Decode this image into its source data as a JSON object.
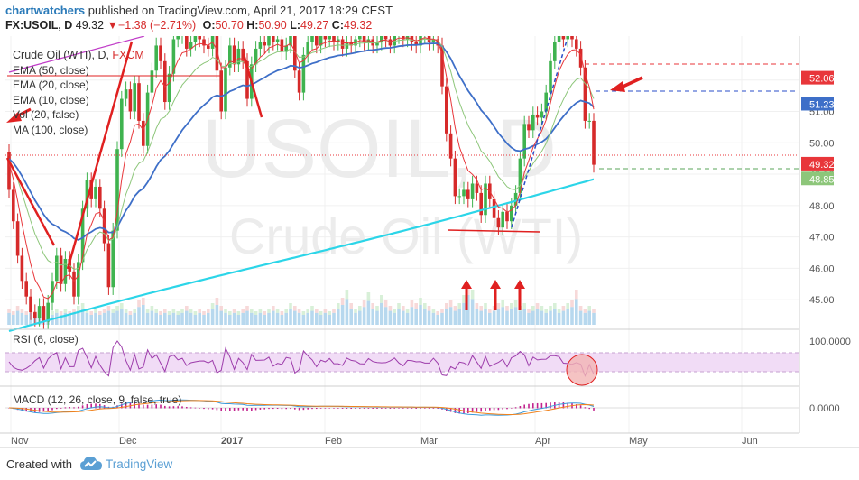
{
  "header": {
    "author": "chartwatchers",
    "published_text": "published on TradingView.com, April 21, 2017 18:29 CEST",
    "symbol": "FX:USOIL, D",
    "last": "49.32",
    "change": "−1.38 (−2.71%)",
    "open_label": "O:",
    "open": "50.70",
    "high_label": "H:",
    "high": "50.90",
    "low_label": "L:",
    "low": "49.27",
    "close_label": "C:",
    "close": "49.32"
  },
  "legend": {
    "title_main": "Crude Oil (WTI), D, ",
    "title_exchange": "FXCM",
    "ema50": "EMA (50, close)",
    "ema20": "EMA (20, close)",
    "ema10": "EMA (10, close)",
    "vol": "Vol (20, false)",
    "ma100": "MA (100, close)"
  },
  "watermark": {
    "symbol": "USOIL, D",
    "name": "Crude Oil (WTI)"
  },
  "rsi": {
    "title": "RSI (6, close)",
    "axis_label": "100.0000"
  },
  "macd": {
    "title": "MACD (12, 26, close, 9, false, true)",
    "axis_label": "0.0000"
  },
  "footer": {
    "created": "Created with",
    "brand": "TradingView"
  },
  "colors": {
    "up": "#3fb34f",
    "down": "#d62a2a",
    "ema50": "#3e6fc8",
    "ema20": "#8dc67a",
    "ema10": "#e8363a",
    "ma100": "#2cd5e8",
    "volume": "#9fcbe8",
    "rsi": "#9d3cab",
    "rsi_band": "#f1dcf6",
    "macd_fast": "#3b9ad9",
    "macd_slow": "#f0821c",
    "hist": "#c2238e"
  },
  "chart_data": {
    "type": "candlestick",
    "x_tick_labels": [
      "Nov",
      "Dec",
      "2017",
      "Feb",
      "Mar",
      "Apr",
      "May",
      "Jun"
    ],
    "y_tick_labels": [
      45.0,
      46.0,
      47.0,
      48.0,
      49.0,
      50.0,
      51.0,
      52.0
    ],
    "ylim": [
      44.2,
      53.4
    ],
    "price_labels": [
      {
        "value": 52.06,
        "text": "52.06",
        "color": "#e8363a"
      },
      {
        "value": 51.23,
        "text": "51.23",
        "color": "#3e6fc8"
      },
      {
        "value": 49.32,
        "text": "49.32",
        "color": "#e8363a"
      },
      {
        "value": 48.85,
        "text": "48.85",
        "color": "#8dc67a"
      }
    ],
    "candles": [
      [
        49.7,
        48.5
      ],
      [
        48.5,
        47.5
      ],
      [
        47.5,
        46.4
      ],
      [
        46.4,
        45.6
      ],
      [
        45.6,
        45.1
      ],
      [
        45.1,
        44.6
      ],
      [
        44.6,
        44.4
      ],
      [
        44.4,
        44.8
      ],
      [
        44.8,
        44.3
      ],
      [
        44.3,
        44.9
      ],
      [
        44.9,
        45.6
      ],
      [
        45.6,
        46.4
      ],
      [
        46.4,
        45.5
      ],
      [
        45.5,
        46.3
      ],
      [
        46.3,
        45.9
      ],
      [
        45.9,
        45.1
      ],
      [
        45.1,
        46.2
      ],
      [
        46.2,
        47.9
      ],
      [
        47.9,
        48.8
      ],
      [
        48.8,
        48.2
      ],
      [
        48.2,
        48.6
      ],
      [
        48.6,
        47.9
      ],
      [
        47.9,
        46.8
      ],
      [
        46.8,
        45.4
      ],
      [
        45.4,
        47.2
      ],
      [
        47.2,
        49.8
      ],
      [
        49.8,
        51.4
      ],
      [
        51.4,
        51.7
      ],
      [
        51.7,
        51.0
      ],
      [
        51.0,
        51.9
      ],
      [
        51.9,
        50.7
      ],
      [
        50.7,
        49.9
      ],
      [
        49.9,
        51.6
      ],
      [
        51.6,
        52.3
      ],
      [
        52.3,
        53.1
      ],
      [
        53.1,
        52.6
      ],
      [
        52.6,
        51.3
      ],
      [
        51.3,
        52.2
      ],
      [
        52.2,
        53.3
      ],
      [
        53.3,
        53.4
      ],
      [
        53.4,
        53.5
      ],
      [
        53.5,
        53.0
      ],
      [
        53.0,
        53.2
      ],
      [
        53.2,
        53.4
      ],
      [
        53.4,
        53.3
      ],
      [
        53.3,
        53.1
      ],
      [
        53.1,
        53.0
      ],
      [
        53.0,
        53.5
      ],
      [
        53.5,
        52.3
      ],
      [
        52.3,
        51.0
      ],
      [
        51.0,
        52.4
      ],
      [
        52.4,
        53.1
      ],
      [
        53.1,
        52.5
      ],
      [
        52.5,
        53.0
      ],
      [
        53.0,
        52.6
      ],
      [
        52.6,
        51.4
      ],
      [
        51.4,
        52.5
      ],
      [
        52.5,
        53.0
      ],
      [
        53.0,
        53.2
      ],
      [
        53.2,
        53.1
      ],
      [
        53.1,
        53.5
      ],
      [
        53.5,
        53.2
      ],
      [
        53.2,
        53.3
      ],
      [
        53.3,
        52.9
      ],
      [
        52.9,
        53.1
      ],
      [
        53.1,
        53.4
      ],
      [
        53.4,
        52.3
      ],
      [
        52.3,
        51.6
      ],
      [
        51.6,
        52.8
      ],
      [
        52.8,
        53.2
      ],
      [
        53.2,
        53.4
      ],
      [
        53.4,
        53.1
      ],
      [
        53.1,
        53.5
      ],
      [
        53.5,
        53.3
      ],
      [
        53.3,
        53.4
      ],
      [
        53.4,
        53.2
      ],
      [
        53.2,
        53.3
      ],
      [
        53.3,
        53.0
      ],
      [
        53.0,
        53.2
      ],
      [
        53.2,
        53.1
      ],
      [
        53.1,
        53.3
      ],
      [
        53.3,
        53.4
      ],
      [
        53.4,
        53.2
      ],
      [
        53.2,
        53.3
      ],
      [
        53.3,
        53.1
      ],
      [
        53.1,
        53.2
      ],
      [
        53.2,
        53.4
      ],
      [
        53.4,
        53.3
      ],
      [
        53.3,
        53.1
      ],
      [
        53.1,
        53.4
      ],
      [
        53.4,
        53.5
      ],
      [
        53.5,
        53.3
      ],
      [
        53.3,
        53.4
      ],
      [
        53.4,
        53.2
      ],
      [
        53.2,
        53.1
      ],
      [
        53.1,
        53.4
      ],
      [
        53.4,
        53.5
      ],
      [
        53.5,
        53.2
      ],
      [
        53.2,
        53.3
      ],
      [
        53.3,
        53.1
      ],
      [
        53.1,
        51.8
      ],
      [
        51.8,
        50.3
      ],
      [
        50.3,
        49.5
      ],
      [
        49.5,
        48.3
      ],
      [
        48.3,
        48.3
      ],
      [
        48.3,
        48.5
      ],
      [
        48.5,
        48.2
      ],
      [
        48.2,
        48.7
      ],
      [
        48.7,
        48.4
      ],
      [
        48.4,
        47.7
      ],
      [
        47.7,
        48.7
      ],
      [
        48.7,
        48.2
      ],
      [
        48.2,
        47.6
      ],
      [
        47.6,
        47.3
      ],
      [
        47.3,
        47.8
      ],
      [
        47.8,
        47.5
      ],
      [
        47.5,
        48.0
      ],
      [
        48.0,
        48.4
      ],
      [
        48.4,
        49.5
      ],
      [
        49.5,
        50.6
      ],
      [
        50.6,
        50.4
      ],
      [
        50.4,
        50.9
      ],
      [
        50.9,
        50.8
      ],
      [
        50.8,
        51.0
      ],
      [
        51.0,
        51.6
      ],
      [
        51.6,
        52.6
      ],
      [
        52.6,
        53.2
      ],
      [
        53.2,
        53.5
      ],
      [
        53.5,
        53.3
      ],
      [
        53.3,
        53.4
      ],
      [
        53.4,
        53.3
      ],
      [
        53.3,
        53.0
      ],
      [
        53.0,
        52.4
      ],
      [
        52.4,
        50.7
      ],
      [
        50.7,
        50.7
      ],
      [
        50.7,
        49.3
      ]
    ],
    "volume_relative": [
      0.6,
      0.5,
      0.7,
      0.6,
      0.5,
      0.6,
      0.5,
      0.6,
      0.7,
      0.6,
      0.5,
      0.6,
      0.5,
      0.6,
      0.5,
      0.6,
      0.7,
      0.8,
      0.6,
      0.5,
      0.6,
      0.5,
      0.6,
      0.7,
      0.6,
      0.7,
      0.8,
      0.6,
      0.5,
      0.6,
      0.9,
      1.0,
      0.6,
      0.7,
      0.6,
      0.5,
      0.6,
      0.5,
      0.6,
      0.5,
      0.6,
      0.7,
      0.6,
      0.5,
      0.6,
      0.5,
      0.6,
      0.8,
      1.0,
      0.7,
      0.6,
      0.5,
      0.6,
      0.5,
      0.6,
      0.7,
      0.6,
      0.5,
      0.6,
      0.5,
      0.6,
      0.7,
      0.6,
      0.5,
      0.6,
      0.8,
      0.7,
      0.6,
      0.5,
      0.6,
      0.7,
      0.6,
      0.5,
      0.6,
      0.5,
      0.6,
      0.8,
      1.0,
      1.3,
      0.8,
      0.6,
      0.7,
      0.9,
      1.2,
      0.8,
      0.7,
      1.1,
      0.9,
      0.7,
      0.6,
      0.8,
      0.7,
      0.6,
      0.9,
      0.8,
      1.0,
      0.8,
      0.7,
      0.6,
      0.5,
      0.6,
      0.8,
      0.9,
      0.7,
      0.8,
      1.1,
      1.5,
      1.3,
      0.8,
      0.7,
      0.8,
      0.6,
      0.7,
      0.8,
      0.9,
      0.7,
      0.8,
      0.9,
      0.7,
      0.8,
      0.6,
      0.7,
      0.8,
      0.7,
      0.6,
      0.7,
      0.8,
      0.6,
      0.7,
      0.8,
      0.9,
      1.3,
      0.7,
      0.6,
      0.7,
      0.6
    ],
    "indicators": [
      "EMA 50",
      "EMA 20",
      "EMA 10",
      "MA 100",
      "RSI 6",
      "MACD 12 26 9"
    ]
  }
}
